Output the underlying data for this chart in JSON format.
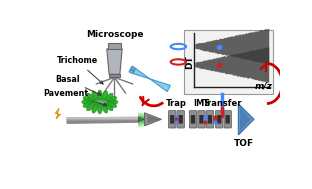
{
  "bg_color": "#ffffff",
  "text_color": "#000000",
  "arrow_color": "#cc0000",
  "ms_line1_color": "#4488ff",
  "ms_line2_color": "#cc2222",
  "tof_color": "#6699cc",
  "drum_color": "#909090",
  "plant_color": "#22aa22",
  "capillary_color": "#87ceeb",
  "labels": {
    "microscope": "Microscope",
    "trichome": "Trichome",
    "basal": "Basal",
    "pavement": "Pavement",
    "trap": "Trap",
    "ims": "IMS",
    "transfer": "Transfer",
    "tof": "TOF",
    "dt": "DT",
    "mz": "m/z"
  }
}
